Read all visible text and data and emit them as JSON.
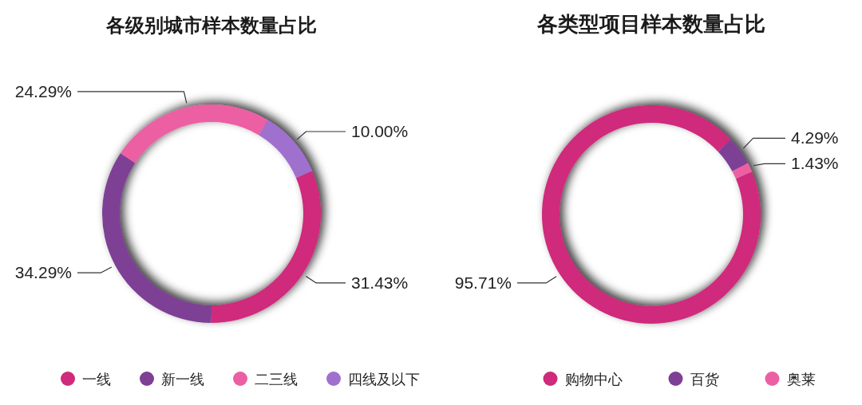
{
  "chart_data": [
    {
      "type": "donut",
      "title": "各级别城市样本数量占比",
      "categories": [
        "一线",
        "新一线",
        "二三线",
        "四线及以下"
      ],
      "values": [
        31.43,
        34.29,
        24.29,
        10.0
      ],
      "value_labels": [
        "31.43%",
        "34.29%",
        "24.29%",
        "10.00%"
      ],
      "colors": [
        "#cf2a7b",
        "#7e3f95",
        "#ec5fa3",
        "#a070cf"
      ],
      "legend": "bottom"
    },
    {
      "type": "donut",
      "title": "各类型项目样本数量占比",
      "categories": [
        "购物中心",
        "百货",
        "奥莱"
      ],
      "values": [
        95.71,
        4.29,
        1.43
      ],
      "value_labels": [
        "95.71%",
        "4.29%",
        "1.43%"
      ],
      "colors": [
        "#cf2a7b",
        "#7e3f95",
        "#ec5fa3"
      ],
      "legend": "bottom"
    }
  ]
}
